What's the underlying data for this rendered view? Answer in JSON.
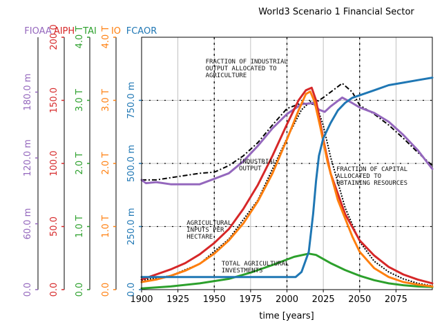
{
  "chart_data": {
    "type": "line",
    "title": "World3 Scenario 1 Financial Sector",
    "xlabel": "time [years]",
    "xlim": [
      1900,
      2100
    ],
    "x_ticks": [
      "1900",
      "1925",
      "1950",
      "1975",
      "2000",
      "2025",
      "2050",
      "2075"
    ],
    "x_tick_values": [
      1900,
      1925,
      1950,
      1975,
      2000,
      2025,
      2050,
      2075
    ],
    "grid": true,
    "axes": [
      {
        "label": "FIOAA",
        "color": "#9467bd",
        "ylim": [
          0,
          0.23
        ],
        "ticks": [
          "0.0",
          "60.0 m",
          "120.0 m",
          "180.0 m"
        ],
        "tick_values": [
          0,
          0.06,
          0.12,
          0.18
        ]
      },
      {
        "label": "AIPH",
        "color": "#d62728",
        "ylim": [
          0,
          200
        ],
        "ticks": [
          "0.0",
          "50.0",
          "100.0",
          "150.0",
          "200.0"
        ],
        "tick_values": [
          0,
          50,
          100,
          150,
          200
        ]
      },
      {
        "label": "TAI",
        "color": "#2ca02c",
        "ylim": [
          0,
          4
        ],
        "ticks": [
          "0.0",
          "1.0 T",
          "2.0 T",
          "3.0 T",
          "4.0 T"
        ],
        "tick_values": [
          0,
          1,
          2,
          3,
          4
        ]
      },
      {
        "label": "IO",
        "color": "#ff7f0e",
        "ylim": [
          0,
          4
        ],
        "ticks": [
          "0.0",
          "1.0 T",
          "2.0 T",
          "3.0 T",
          "4.0 T"
        ],
        "tick_values": [
          0,
          1,
          2,
          3,
          4
        ]
      },
      {
        "label": "FCAOR",
        "color": "#1f77b4",
        "ylim": [
          0,
          1
        ],
        "ticks": [
          "0.0",
          "250.0 m",
          "500.0 m",
          "750.0 m"
        ],
        "tick_values": [
          0,
          0.25,
          0.5,
          0.75
        ]
      }
    ],
    "series": [
      {
        "name": "FIOAA",
        "axis": 0,
        "color": "#9467bd",
        "x": [
          1900,
          1903,
          1910,
          1920,
          1940,
          1950,
          1960,
          1970,
          1980,
          1990,
          2000,
          2010,
          2018,
          2022,
          2026,
          2030,
          2038,
          2045,
          2050,
          2060,
          2070,
          2080,
          2090,
          2100
        ],
        "y": [
          0.1,
          0.097,
          0.098,
          0.096,
          0.096,
          0.101,
          0.106,
          0.117,
          0.131,
          0.147,
          0.16,
          0.169,
          0.17,
          0.164,
          0.162,
          0.167,
          0.175,
          0.17,
          0.166,
          0.161,
          0.153,
          0.141,
          0.127,
          0.11
        ]
      },
      {
        "name": "AIPH",
        "axis": 1,
        "color": "#d62728",
        "x": [
          1900,
          1910,
          1920,
          1930,
          1940,
          1950,
          1960,
          1970,
          1980,
          1990,
          2000,
          2008,
          2013,
          2017,
          2020,
          2025,
          2030,
          2040,
          2050,
          2060,
          2070,
          2080,
          2090,
          2100
        ],
        "y": [
          8,
          12,
          16,
          21,
          28,
          37,
          48,
          64,
          83,
          106,
          131,
          150,
          158,
          160,
          150,
          119,
          92,
          60,
          39,
          27,
          18,
          12,
          8,
          5
        ]
      },
      {
        "name": "TAI",
        "axis": 2,
        "color": "#2ca02c",
        "x": [
          1900,
          1920,
          1940,
          1960,
          1975,
          1990,
          2005,
          2015,
          2020,
          2030,
          2040,
          2050,
          2060,
          2070,
          2080,
          2090,
          2100
        ],
        "y": [
          0.02,
          0.05,
          0.1,
          0.17,
          0.27,
          0.39,
          0.52,
          0.57,
          0.55,
          0.42,
          0.31,
          0.22,
          0.15,
          0.1,
          0.07,
          0.05,
          0.04
        ]
      },
      {
        "name": "IO",
        "axis": 3,
        "color": "#ff7f0e",
        "x": [
          1900,
          1910,
          1920,
          1930,
          1940,
          1950,
          1960,
          1970,
          1980,
          1990,
          2000,
          2008,
          2013,
          2016,
          2019,
          2023,
          2028,
          2035,
          2045,
          2050,
          2060,
          2070,
          2080,
          2090,
          2100
        ],
        "y": [
          0.12,
          0.16,
          0.22,
          0.3,
          0.41,
          0.57,
          0.78,
          1.05,
          1.4,
          1.84,
          2.38,
          2.84,
          3.1,
          3.14,
          2.98,
          2.57,
          2.02,
          1.42,
          0.84,
          0.6,
          0.34,
          0.2,
          0.12,
          0.08,
          0.05
        ]
      },
      {
        "name": "FCAOR",
        "axis": 4,
        "color": "#1f77b4",
        "x": [
          1900,
          1950,
          2000,
          2006,
          2010,
          2015,
          2018,
          2020,
          2022,
          2025,
          2030,
          2035,
          2040,
          2045,
          2050,
          2060,
          2070,
          2080,
          2090,
          2100
        ],
        "y": [
          0.05,
          0.05,
          0.05,
          0.05,
          0.07,
          0.15,
          0.3,
          0.43,
          0.53,
          0.6,
          0.66,
          0.71,
          0.74,
          0.76,
          0.77,
          0.79,
          0.81,
          0.82,
          0.83,
          0.84
        ]
      }
    ],
    "reference_lines": [
      {
        "name": "",
        "axis": 0,
        "color": "#000000",
        "x": [
          1900,
          1910,
          1920,
          1940,
          1950,
          1960,
          1970,
          1980,
          1990,
          2000,
          2010,
          2018,
          2025,
          2030,
          2038,
          2045,
          2050,
          2060,
          2070,
          2080,
          2090,
          2100
        ],
        "y": [
          0.1,
          0.1,
          0.102,
          0.106,
          0.107,
          0.113,
          0.122,
          0.134,
          0.15,
          0.165,
          0.17,
          0.169,
          0.175,
          0.18,
          0.188,
          0.18,
          0.168,
          0.16,
          0.15,
          0.138,
          0.125,
          0.113
        ]
      },
      {
        "name": "",
        "axis": 3,
        "color": "#000000",
        "x": [
          1900,
          1920,
          1940,
          1960,
          1980,
          2000,
          2010,
          2016,
          2020,
          2025,
          2030,
          2040,
          2050,
          2060,
          2070,
          2080,
          2090,
          2100
        ],
        "y": [
          0.15,
          0.22,
          0.41,
          0.8,
          1.42,
          2.4,
          2.85,
          2.98,
          2.95,
          2.6,
          2.1,
          1.3,
          0.76,
          0.45,
          0.28,
          0.17,
          0.1,
          0.06
        ]
      }
    ],
    "annotations": [
      {
        "lines": [
          "FRACTION OF INDUSTRIAL",
          "OUTPUT ALLOCATED TO",
          "AGRICULTURE"
        ],
        "x": 1944,
        "axis": 0,
        "y": 0.206
      },
      {
        "lines": [
          "INDUSTRIAL",
          "OUTPUT"
        ],
        "x": 1967,
        "axis": 0,
        "y": 0.115
      },
      {
        "lines": [
          "FRACTION OF CAPITAL",
          "ALLOCATED TO",
          "OBTAINING RESOURCES"
        ],
        "x": 2034,
        "axis": 0,
        "y": 0.108
      },
      {
        "lines": [
          "AGRICULTURAL",
          "INPUTS PER",
          "HECTARE"
        ],
        "x": 1931,
        "axis": 0,
        "y": 0.059
      },
      {
        "lines": [
          "TOTAL AGRICULTURAL",
          "INVESTMENTS"
        ],
        "x": 1955,
        "axis": 0,
        "y": 0.022
      }
    ]
  }
}
